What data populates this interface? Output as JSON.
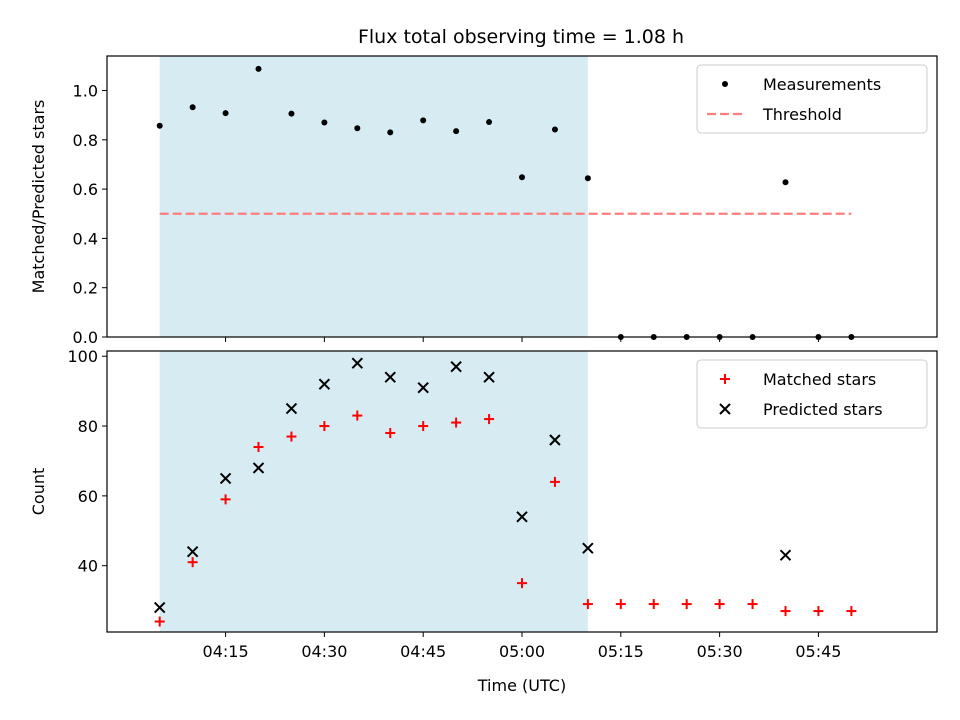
{
  "title": "Flux total observing time = 1.08 h",
  "colors": {
    "shade": "#add8e6",
    "measurement": "#000000",
    "threshold": "#ff7f7f",
    "matched": "#ff0000",
    "predicted": "#000000"
  },
  "chart_data": [
    {
      "type": "scatter",
      "panel": "top",
      "ylabel": "Matched/Predicted stars",
      "xlabel": "",
      "xlim": [
        "03:57",
        "06:03"
      ],
      "ylim": [
        0,
        1.14
      ],
      "y_ticks": [
        "0.0",
        "0.2",
        "0.4",
        "0.6",
        "0.8",
        "1.0"
      ],
      "x_tick_labels_shown": false,
      "shaded_interval": [
        "04:05",
        "05:10"
      ],
      "legend": {
        "position": "top-right",
        "entries": [
          "Measurements",
          "Threshold"
        ]
      },
      "series": [
        {
          "name": "Measurements",
          "marker": "dot",
          "x": [
            "04:05",
            "04:10",
            "04:15",
            "04:20",
            "04:25",
            "04:30",
            "04:35",
            "04:40",
            "04:45",
            "04:50",
            "04:55",
            "05:00",
            "05:05",
            "05:10",
            "05:15",
            "05:20",
            "05:25",
            "05:30",
            "05:35",
            "05:40",
            "05:45",
            "05:50"
          ],
          "y": [
            0.857,
            0.932,
            0.908,
            1.088,
            0.906,
            0.87,
            0.847,
            0.83,
            0.879,
            0.835,
            0.872,
            0.648,
            0.842,
            0.644,
            0.0,
            0.0,
            0.0,
            0.0,
            0.0,
            0.628,
            0.0,
            0.0
          ]
        },
        {
          "name": "Threshold",
          "style": "dashed",
          "x": [
            "04:05",
            "05:50"
          ],
          "y": [
            0.5,
            0.5
          ]
        }
      ]
    },
    {
      "type": "scatter",
      "panel": "bottom",
      "ylabel": "Count",
      "xlabel": "Time (UTC)",
      "xlim": [
        "03:57",
        "06:03"
      ],
      "ylim": [
        21,
        101.5
      ],
      "y_ticks": [
        "40",
        "60",
        "80",
        "100"
      ],
      "x_ticks": [
        "04:15",
        "04:30",
        "04:45",
        "05:00",
        "05:15",
        "05:30",
        "05:45"
      ],
      "shaded_interval": [
        "04:05",
        "05:10"
      ],
      "legend": {
        "position": "top-right",
        "entries": [
          "Matched stars",
          "Predicted stars"
        ]
      },
      "series": [
        {
          "name": "Matched stars",
          "marker": "plus",
          "x": [
            "04:05",
            "04:10",
            "04:15",
            "04:20",
            "04:25",
            "04:30",
            "04:35",
            "04:40",
            "04:45",
            "04:50",
            "04:55",
            "05:00",
            "05:05",
            "05:10",
            "05:15",
            "05:20",
            "05:25",
            "05:30",
            "05:35",
            "05:40",
            "05:45",
            "05:50"
          ],
          "y": [
            24,
            41,
            59,
            74,
            77,
            80,
            83,
            78,
            80,
            81,
            82,
            35,
            64,
            29,
            29,
            29,
            29,
            29,
            29,
            27,
            27,
            27
          ]
        },
        {
          "name": "Predicted stars",
          "marker": "x",
          "x": [
            "04:05",
            "04:10",
            "04:15",
            "04:20",
            "04:25",
            "04:30",
            "04:35",
            "04:40",
            "04:45",
            "04:50",
            "04:55",
            "05:00",
            "05:05",
            "05:10",
            "05:40"
          ],
          "y": [
            28,
            44,
            65,
            68,
            85,
            92,
            98,
            94,
            91,
            97,
            94,
            54,
            76,
            45,
            43
          ]
        }
      ]
    }
  ]
}
